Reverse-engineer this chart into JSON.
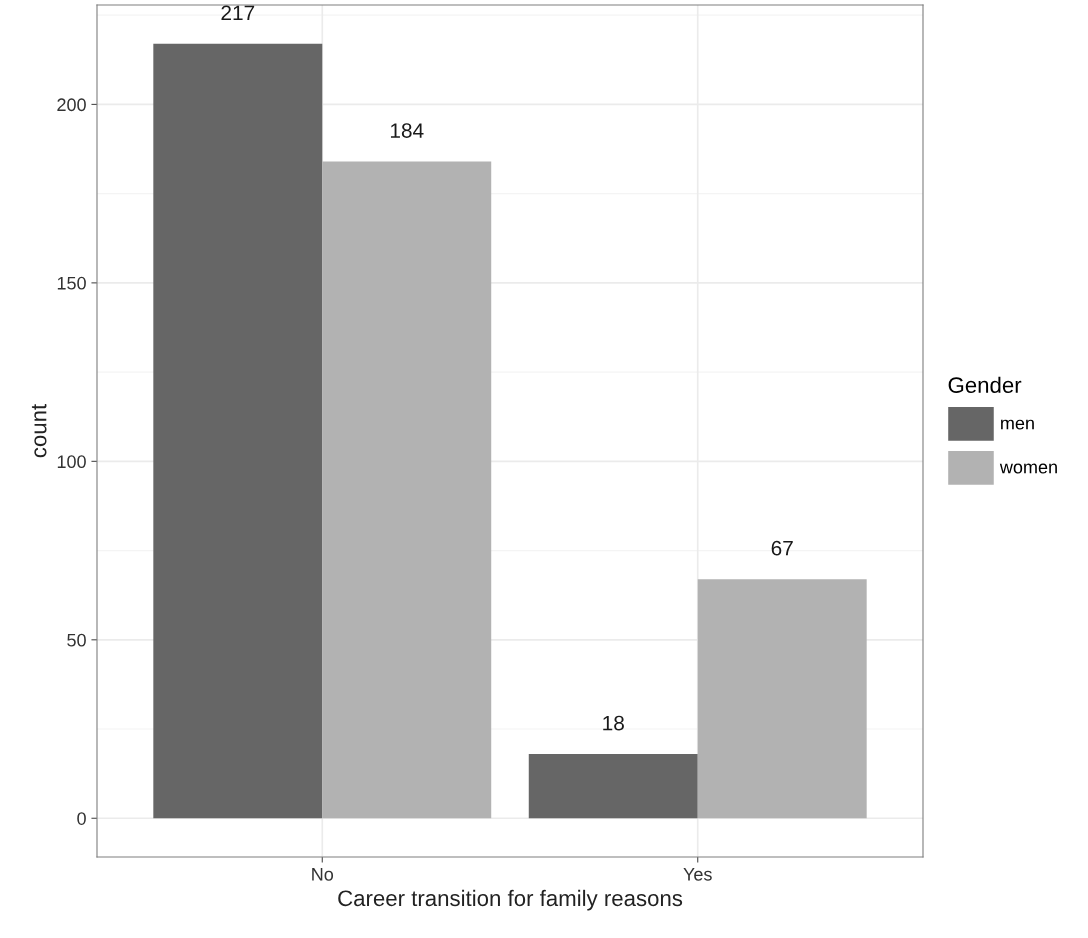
{
  "chart_data": {
    "type": "bar",
    "xlabel": "Career transition for family reasons",
    "ylabel": "count",
    "legend_title": "Gender",
    "categories": [
      "No",
      "Yes"
    ],
    "series": [
      {
        "name": "men",
        "color": "#666666",
        "values": [
          217,
          18
        ]
      },
      {
        "name": "women",
        "color": "#b2b2b2",
        "values": [
          184,
          67
        ]
      }
    ],
    "ylim": [
      -10.85,
      227.85
    ],
    "yticks": [
      0,
      50,
      100,
      150,
      200
    ],
    "grid": true,
    "legend": "right",
    "data_labels": true
  }
}
